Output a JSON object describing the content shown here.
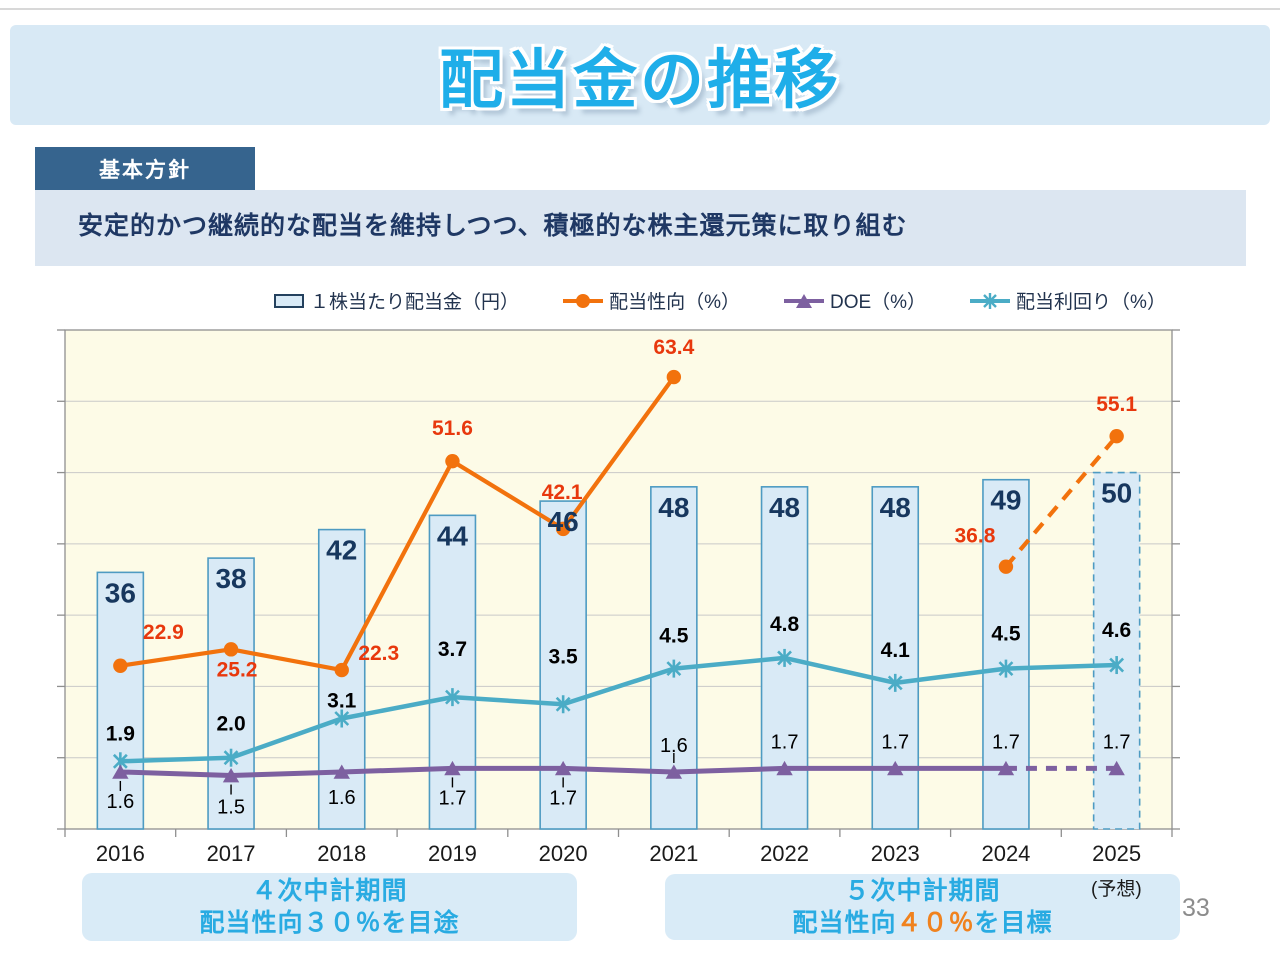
{
  "slide": {
    "title": "配当金の推移",
    "policy_tab": "基本方針",
    "policy_text": "安定的かつ継続的な配当を維持しつつ、積極的な株主還元策に取り組む",
    "page_number": "33"
  },
  "legend": [
    {
      "label": "１株当たり配当金（円）",
      "type": "bar-swatch"
    },
    {
      "label": "配当性向（%）",
      "type": "circle-line"
    },
    {
      "label": "DOE（%）",
      "type": "triangle-line"
    },
    {
      "label": "配当利回り（%）",
      "type": "asterisk-line"
    }
  ],
  "chart_data": {
    "type": "bar",
    "subtype": "bar+line combo, dual axis, no axis tick labels",
    "categories": [
      "2016",
      "2017",
      "2018",
      "2019",
      "2020",
      "2021",
      "2022",
      "2023",
      "2024",
      "2025"
    ],
    "primary_axis": {
      "min": 0,
      "max": 70,
      "grid_interval": 10,
      "tick_labels_visible": false
    },
    "secondary_axis": {
      "min": 0,
      "max": 14,
      "tick_labels_visible": false
    },
    "grid": "horizontal gridlines on, cream plot background",
    "legend_position": "top",
    "forecast_category": "2025",
    "forecast_note": "(予想)",
    "series": [
      {
        "name": "１株当たり配当金（円）",
        "type": "bar",
        "axis": "primary",
        "values": [
          36,
          38,
          42,
          44,
          46,
          48,
          48,
          48,
          49,
          50
        ],
        "labels": [
          "36",
          "38",
          "42",
          "44",
          "46",
          "48",
          "48",
          "48",
          "49",
          "50"
        ],
        "last_bar_dashed": true
      },
      {
        "name": "配当性向（%）",
        "type": "line",
        "axis": "primary",
        "marker": "circle",
        "values": [
          22.9,
          25.2,
          22.3,
          51.6,
          42.1,
          63.4,
          null,
          null,
          36.8,
          55.1
        ],
        "labels": [
          "22.9",
          "25.2",
          "22.3",
          "51.6",
          "42.1",
          "63.4",
          null,
          null,
          "36.8",
          "55.1"
        ],
        "solid_through_index": 5,
        "dashed_segment": [
          8,
          9
        ]
      },
      {
        "name": "DOE（%）",
        "type": "line",
        "axis": "secondary",
        "marker": "triangle",
        "values": [
          1.6,
          1.5,
          1.6,
          1.7,
          1.7,
          1.6,
          1.7,
          1.7,
          1.7,
          1.7
        ],
        "labels": [
          "1.6",
          "1.5",
          "1.6",
          "1.7",
          "1.7",
          "1.6",
          "1.7",
          "1.7",
          "1.7",
          "1.7"
        ],
        "solid_through_index": 8,
        "dashed_segment": [
          8,
          9
        ]
      },
      {
        "name": "配当利回り（%）",
        "type": "line",
        "axis": "secondary",
        "marker": "asterisk",
        "values": [
          1.9,
          2.0,
          3.1,
          3.7,
          3.5,
          4.5,
          4.8,
          4.1,
          4.5,
          4.6
        ],
        "labels": [
          "1.9",
          "2.0",
          "3.1",
          "3.7",
          "3.5",
          "4.5",
          "4.8",
          "4.1",
          "4.5",
          "4.6"
        ],
        "solid_through_index": 9
      }
    ]
  },
  "footer": {
    "left_box_line1": "４次中計期間",
    "left_box_line2": "配当性向３０％を目途",
    "right_box_line1": "５次中計期間",
    "right_box_line2_prefix": "配当性向",
    "right_box_line2_highlight": "４０％",
    "right_box_line2_suffix": "を目標"
  },
  "colors": {
    "title_text": "#1FAEE9",
    "title_band": "#D8E9F5",
    "tab_bg": "#36648E",
    "policy_band": "#DCE6F1",
    "policy_text": "#1F3864",
    "plot_bg": "#FDFBE7",
    "bar_fill": "#D9EAF6",
    "bar_border": "#4E9BC2",
    "bar_label": "#17375E",
    "payout_line": "#F2720D",
    "payout_label": "#E8380D",
    "doe_line": "#7D60A0",
    "yield_line": "#4BACC6",
    "grid": "#C9C9C9",
    "axis": "#8F8F8F",
    "x_label": "#1A1A1A",
    "box_bg": "#D9EBF7",
    "box_text": "#29ABE2",
    "box_highlight": "#F0821E",
    "page_number": "#8C8C8C"
  }
}
